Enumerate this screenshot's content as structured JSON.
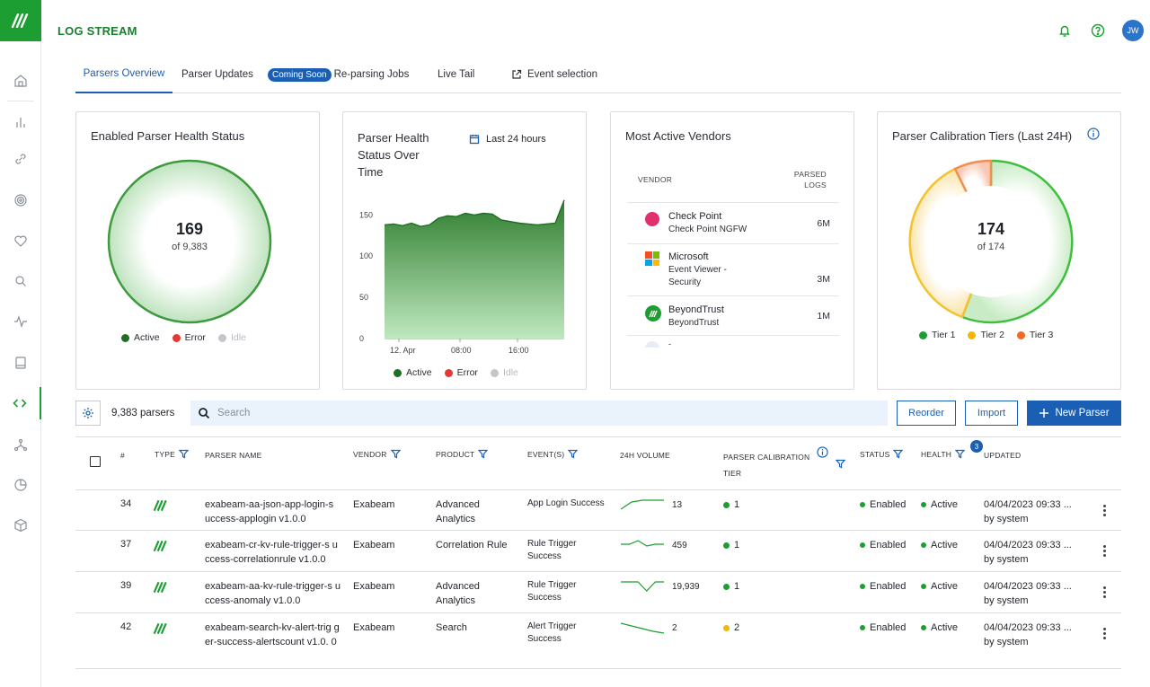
{
  "app": {
    "title": "LOG STREAM",
    "avatar_initials": "JW"
  },
  "sidebar": {
    "items": [
      {
        "icon": "home-icon"
      },
      {
        "icon": "bar-chart-icon"
      },
      {
        "icon": "link-icon"
      },
      {
        "icon": "target-icon"
      },
      {
        "icon": "heart-icon"
      },
      {
        "icon": "search-icon"
      },
      {
        "icon": "activity-icon"
      },
      {
        "icon": "book-icon"
      },
      {
        "icon": "code-icon"
      },
      {
        "icon": "network-icon"
      },
      {
        "icon": "pie-icon"
      },
      {
        "icon": "cube-icon"
      }
    ],
    "active": "code-icon"
  },
  "tabs": [
    {
      "label": "Parsers Overview"
    },
    {
      "label": "Parser Updates"
    },
    {
      "label": "Re-parsing Jobs",
      "badge": "Coming Soon"
    },
    {
      "label": "Live Tail"
    },
    {
      "label": "Event selection"
    }
  ],
  "cards": {
    "health": {
      "title": "Enabled Parser Health Status",
      "value": "169",
      "sub": "of 9,383",
      "legend": [
        "Active",
        "Error",
        "Idle"
      ]
    },
    "over_time": {
      "title_line1": "Parser Health",
      "title_line2": "Status Over",
      "title_line3": "Time",
      "range": "Last 24 hours",
      "legend": [
        "Active",
        "Error",
        "Idle"
      ]
    },
    "vendors": {
      "title": "Most Active Vendors",
      "col_vendor": "VENDOR",
      "col_logs_1": "PARSED",
      "col_logs_2": "LOGS",
      "rows": [
        {
          "name": "Check Point",
          "product": "Check Point NGFW",
          "logs": "6M"
        },
        {
          "name": "Microsoft",
          "product": "Event Viewer - Security",
          "logs": "3M"
        },
        {
          "name": "BeyondTrust",
          "product": "BeyondTrust",
          "logs": "1M"
        }
      ],
      "partial_row": "-"
    },
    "tiers": {
      "title": "Parser Calibration Tiers (Last 24H)",
      "value": "174",
      "sub": "of 174",
      "legend": [
        "Tier 1",
        "Tier 2",
        "Tier 3"
      ]
    }
  },
  "chart_data": {
    "type": "area",
    "title": "Parser Health Status Over Time",
    "x_ticks": [
      "12. Apr",
      "08:00",
      "16:00"
    ],
    "y_ticks": [
      0,
      50,
      100,
      150
    ],
    "ylim": [
      0,
      170
    ],
    "series": [
      {
        "name": "Active",
        "color": "#2f8a35",
        "values": [
          138,
          139,
          137,
          140,
          136,
          138,
          146,
          149,
          148,
          152,
          150,
          152,
          151,
          144,
          142,
          140,
          139,
          138,
          139,
          140,
          168
        ]
      }
    ],
    "legend": [
      "Active",
      "Error",
      "Idle"
    ]
  },
  "toolbar": {
    "count": "9,383 parsers",
    "search_placeholder": "Search",
    "reorder": "Reorder",
    "import": "Import",
    "new_parser": "New Parser"
  },
  "table": {
    "headers": {
      "num": "#",
      "type": "TYPE",
      "name": "PARSER NAME",
      "vendor": "VENDOR",
      "product": "PRODUCT",
      "events": "EVENT(S)",
      "volume": "24H VOLUME",
      "tier_1": "PARSER CALIBRATION",
      "tier_2": "TIER",
      "status": "STATUS",
      "health": "HEALTH",
      "updated": "UPDATED"
    },
    "health_filter_count": "3",
    "rows": [
      {
        "num": "34",
        "name": "exabeam-aa-json-app-login-s uccess-applogin v1.0.0",
        "vendor": "Exabeam",
        "product": "Advanced Analytics",
        "events": "App Login Success",
        "volume": "13",
        "tier": "1",
        "tier_color": "#1d9e33",
        "status": "Enabled",
        "health": "Active",
        "updated": "04/04/2023 09:33 ...",
        "by": "by system",
        "spark": [
          2,
          10,
          12,
          12,
          12
        ]
      },
      {
        "num": "37",
        "name": "exabeam-cr-kv-rule-trigger-s uccess-correlationrule v1.0.0",
        "vendor": "Exabeam",
        "product": "Correlation Rule",
        "events": "Rule Trigger Success",
        "volume": "459",
        "tier": "1",
        "tier_color": "#1d9e33",
        "status": "Enabled",
        "health": "Active",
        "updated": "04/04/2023 09:33 ...",
        "by": "by system",
        "spark": [
          8,
          8,
          12,
          6,
          8,
          8
        ]
      },
      {
        "num": "39",
        "name": "exabeam-aa-kv-rule-trigger-s uccess-anomaly v1.0.0",
        "vendor": "Exabeam",
        "product": "Advanced Analytics",
        "events": "Rule Trigger Success",
        "volume": "19,939",
        "tier": "1",
        "tier_color": "#1d9e33",
        "status": "Enabled",
        "health": "Active",
        "updated": "04/04/2023 09:33 ...",
        "by": "by system",
        "spark": [
          12,
          12,
          12,
          2,
          12,
          12
        ]
      },
      {
        "num": "42",
        "name": "exabeam-search-kv-alert-trig ger-success-alertscount v1.0. 0",
        "vendor": "Exabeam",
        "product": "Search",
        "events": "Alert Trigger Success",
        "volume": "2",
        "tier": "2",
        "tier_color": "#f2b705",
        "status": "Enabled",
        "health": "Active",
        "updated": "04/04/2023 09:33 ...",
        "by": "by system",
        "spark": [
          12,
          9,
          6,
          3,
          1
        ]
      }
    ]
  },
  "colors": {
    "brand_green": "#1d9e33",
    "accent_blue": "#1a5fb4",
    "error_red": "#e53935",
    "idle_grey": "#c4c6ca",
    "tier2_yellow": "#f2b705",
    "tier3_orange": "#f06a26"
  }
}
